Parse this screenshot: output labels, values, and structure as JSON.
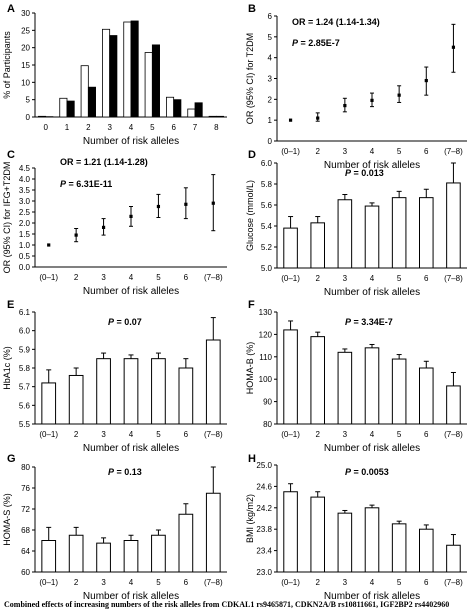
{
  "caption": "Combined effects of increasing numbers of the risk alleles from CDKAL1 rs9465871, CDKN2A/B rs10811661, IGF2BP2 rs4402960",
  "chart_data": [
    {
      "panel": "A",
      "type": "bar",
      "categories": [
        "0",
        "1",
        "2",
        "3",
        "4",
        "5",
        "6",
        "7",
        "8"
      ],
      "series": [
        {
          "values": [
            0.2,
            5.4,
            14.8,
            25.3,
            27.4,
            18.6,
            5.7,
            2.3,
            0.2
          ],
          "color": "#ffffff"
        },
        {
          "values": [
            0.1,
            4.6,
            8.6,
            23.5,
            27.7,
            20.8,
            5.0,
            4.1,
            0.2
          ],
          "color": "#000000"
        }
      ],
      "ylabel": "% of Participants",
      "xlabel": "Number of risk alleles",
      "ylim": [
        0,
        30
      ],
      "yticks": [
        0,
        5,
        10,
        15,
        20,
        25,
        30
      ]
    },
    {
      "panel": "B",
      "type": "scatter",
      "categories": [
        "(0–1)",
        "2",
        "3",
        "4",
        "5",
        "6",
        "(7–8)"
      ],
      "values": [
        1.0,
        1.1,
        1.7,
        1.95,
        2.2,
        2.9,
        4.5
      ],
      "err_low": [
        1.0,
        0.95,
        1.4,
        1.65,
        1.85,
        2.2,
        3.3
      ],
      "err_high": [
        1.0,
        1.35,
        2.05,
        2.3,
        2.65,
        3.55,
        5.6
      ],
      "ylabel": "OR (95% CI) for T2DM",
      "xlabel": "Number of risk alleles",
      "ylim": [
        0,
        6
      ],
      "yticks": [
        0,
        1,
        2,
        3,
        4,
        5,
        6
      ],
      "annotations": [
        "OR = 1.24 (1.14-1.34)",
        "P = 2.85E-7"
      ]
    },
    {
      "panel": "C",
      "type": "scatter",
      "categories": [
        "(0–1)",
        "2",
        "3",
        "4",
        "5",
        "6",
        "(7–8)"
      ],
      "values": [
        1.0,
        1.45,
        1.8,
        2.3,
        2.75,
        2.85,
        2.9
      ],
      "err_low": [
        1.0,
        1.15,
        1.45,
        1.85,
        2.25,
        2.2,
        1.65
      ],
      "err_high": [
        1.0,
        1.75,
        2.2,
        2.75,
        3.3,
        3.6,
        4.2
      ],
      "ylabel": "OR (95% CI) for IFG+T2DM",
      "xlabel": "Number of risk alleles",
      "ylim": [
        0,
        4.5
      ],
      "yticks": [
        0,
        0.5,
        1,
        1.5,
        2,
        2.5,
        3,
        3.5,
        4,
        4.5
      ],
      "annotations": [
        "OR = 1.21 (1.14-1.28)",
        "P = 6.31E-11"
      ]
    },
    {
      "panel": "D",
      "type": "bar",
      "categories": [
        "(0–1)",
        "2",
        "3",
        "4",
        "5",
        "6",
        "(7–8)"
      ],
      "values": [
        5.38,
        5.43,
        5.65,
        5.59,
        5.67,
        5.67,
        5.81
      ],
      "errors": [
        0.11,
        0.06,
        0.05,
        0.03,
        0.06,
        0.08,
        0.19
      ],
      "ylabel": "Glucose (mmol/L)",
      "xlabel": "Number of risk alleles",
      "ylim": [
        5.0,
        6.0
      ],
      "yticks": [
        5.0,
        5.2,
        5.4,
        5.6,
        5.8,
        6.0
      ],
      "annotations": [
        "P = 0.013"
      ]
    },
    {
      "panel": "E",
      "type": "bar",
      "categories": [
        "(0–1)",
        "2",
        "3",
        "4",
        "5",
        "6",
        "(7–8)"
      ],
      "values": [
        5.72,
        5.76,
        5.85,
        5.85,
        5.85,
        5.8,
        5.95
      ],
      "errors": [
        0.07,
        0.04,
        0.03,
        0.02,
        0.03,
        0.05,
        0.12
      ],
      "ylabel": "HbA1c (%)",
      "xlabel": "Number of risk alleles",
      "ylim": [
        5.5,
        6.1
      ],
      "yticks": [
        5.5,
        5.6,
        5.7,
        5.8,
        5.9,
        6.0,
        6.1
      ],
      "annotations": [
        "P = 0.07"
      ]
    },
    {
      "panel": "F",
      "type": "bar",
      "categories": [
        "(0–1)",
        "2",
        "3",
        "4",
        "5",
        "6",
        "(7–8)"
      ],
      "values": [
        122,
        119,
        112,
        114,
        109,
        105,
        97
      ],
      "errors": [
        4,
        2,
        1.5,
        1.5,
        2,
        3,
        6
      ],
      "ylabel": "HOMA-B (%)",
      "xlabel": "Number of risk alleles",
      "ylim": [
        80,
        130
      ],
      "yticks": [
        80,
        90,
        100,
        110,
        120,
        130
      ],
      "annotations": [
        "P = 3.34E-7"
      ]
    },
    {
      "panel": "G",
      "type": "bar",
      "categories": [
        "(0–1)",
        "2",
        "3",
        "4",
        "5",
        "6",
        "(7–8)"
      ],
      "values": [
        66,
        67,
        65.5,
        66,
        67,
        71,
        75
      ],
      "errors": [
        2.5,
        1.5,
        1,
        1,
        1,
        2,
        5
      ],
      "ylabel": "HOMA-S (%)",
      "xlabel": "Number of risk alleles",
      "ylim": [
        60,
        80
      ],
      "yticks": [
        60,
        64,
        68,
        72,
        76,
        80
      ],
      "annotations": [
        "P = 0.13"
      ]
    },
    {
      "panel": "H",
      "type": "bar",
      "categories": [
        "(0–1)",
        "2",
        "3",
        "4",
        "5",
        "6",
        "(7–8)"
      ],
      "values": [
        24.5,
        24.4,
        24.1,
        24.2,
        23.9,
        23.8,
        23.5
      ],
      "errors": [
        0.15,
        0.1,
        0.05,
        0.05,
        0.05,
        0.08,
        0.2
      ],
      "ylabel": "BMI (kg/m2)",
      "xlabel": "Number of risk alleles",
      "ylim": [
        23.0,
        25.0
      ],
      "yticks": [
        23.0,
        23.4,
        23.8,
        24.2,
        24.6,
        25.0
      ],
      "annotations": [
        "P = 0.0053"
      ]
    }
  ]
}
